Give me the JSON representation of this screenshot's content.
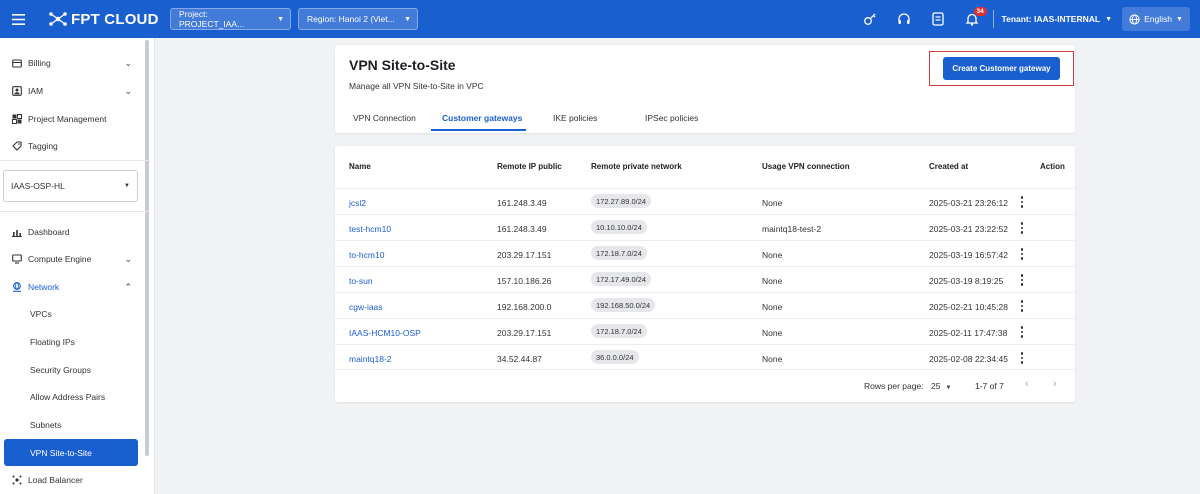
{
  "topbar": {
    "brand": "FPT CLOUD",
    "project_select": "Project: PROJECT_IAA...",
    "region_select": "Region: Hanoi 2 (Viet...",
    "notification_count": "34",
    "tenant": "Tenant: IAAS-INTERNAL",
    "language": "English",
    "icons": [
      "menu-icon",
      "key-icon",
      "support-icon",
      "document-icon",
      "bell-icon",
      "globe-icon"
    ]
  },
  "sidebar": {
    "items": [
      {
        "label": "Billing",
        "icon": "billing-icon",
        "expandable": true
      },
      {
        "label": "IAM",
        "icon": "iam-icon",
        "expandable": true
      },
      {
        "label": "Project Management",
        "icon": "project-icon",
        "expandable": false
      },
      {
        "label": "Tagging",
        "icon": "tag-icon",
        "expandable": false
      }
    ],
    "project_dropdown": "IAAS-OSP-HL",
    "nav": [
      {
        "label": "Dashboard",
        "icon": "chart-icon"
      },
      {
        "label": "Compute Engine",
        "icon": "monitor-icon"
      },
      {
        "label": "Network",
        "icon": "network-icon"
      }
    ],
    "network_sub": [
      "VPCs",
      "Floating IPs",
      "Security Groups",
      "Allow Address Pairs",
      "Subnets",
      "VPN Site-to-Site"
    ],
    "active_item": "VPN Site-to-Site",
    "bottom_item": "Load Balancer"
  },
  "page": {
    "title": "VPN Site-to-Site",
    "subtitle": "Manage all VPN Site-to-Site in VPC",
    "create_button": "Create Customer gateway",
    "tabs": [
      "VPN Connection",
      "Customer gateways",
      "IKE policies",
      "IPSec policies"
    ],
    "active_tab": "Customer gateways"
  },
  "table": {
    "columns": [
      "Name",
      "Remote IP public",
      "Remote private network",
      "Usage VPN connection",
      "Created at",
      "Action"
    ],
    "rows": [
      {
        "name": "jcsl2",
        "ip": "161.248.3.49",
        "network": "172.27.89.0/24",
        "usage": "None",
        "created": "2025-03-21 23:26:12"
      },
      {
        "name": "test-hcm10",
        "ip": "161.248.3.49",
        "network": "10.10.10.0/24",
        "usage": "maintq18-test-2",
        "created": "2025-03-21 23:22:52"
      },
      {
        "name": "to-hcm10",
        "ip": "203.29.17.151",
        "network": "172.18.7.0/24",
        "usage": "None",
        "created": "2025-03-19 16:57:42"
      },
      {
        "name": "to-sun",
        "ip": "157.10.186.26",
        "network": "172.17.49.0/24",
        "usage": "None",
        "created": "2025-03-19 8:19:25"
      },
      {
        "name": "cgw-iaas",
        "ip": "192.168.200.0",
        "network": "192.168.50.0/24",
        "usage": "None",
        "created": "2025-02-21 10:45:28"
      },
      {
        "name": "IAAS-HCM10-OSP",
        "ip": "203.29.17.151",
        "network": "172.18.7.0/24",
        "usage": "None",
        "created": "2025-02-11 17:47:38"
      },
      {
        "name": "maintq18-2",
        "ip": "34.52.44.87",
        "network": "36.0.0.0/24",
        "usage": "None",
        "created": "2025-02-08 22:34:45"
      }
    ],
    "pagination": {
      "rows_per_page_label": "Rows per page:",
      "rows_per_page": "25",
      "range": "1-7 of 7"
    }
  },
  "colors": {
    "primary": "#1a5fd0",
    "highlight": "#d23b3b"
  }
}
